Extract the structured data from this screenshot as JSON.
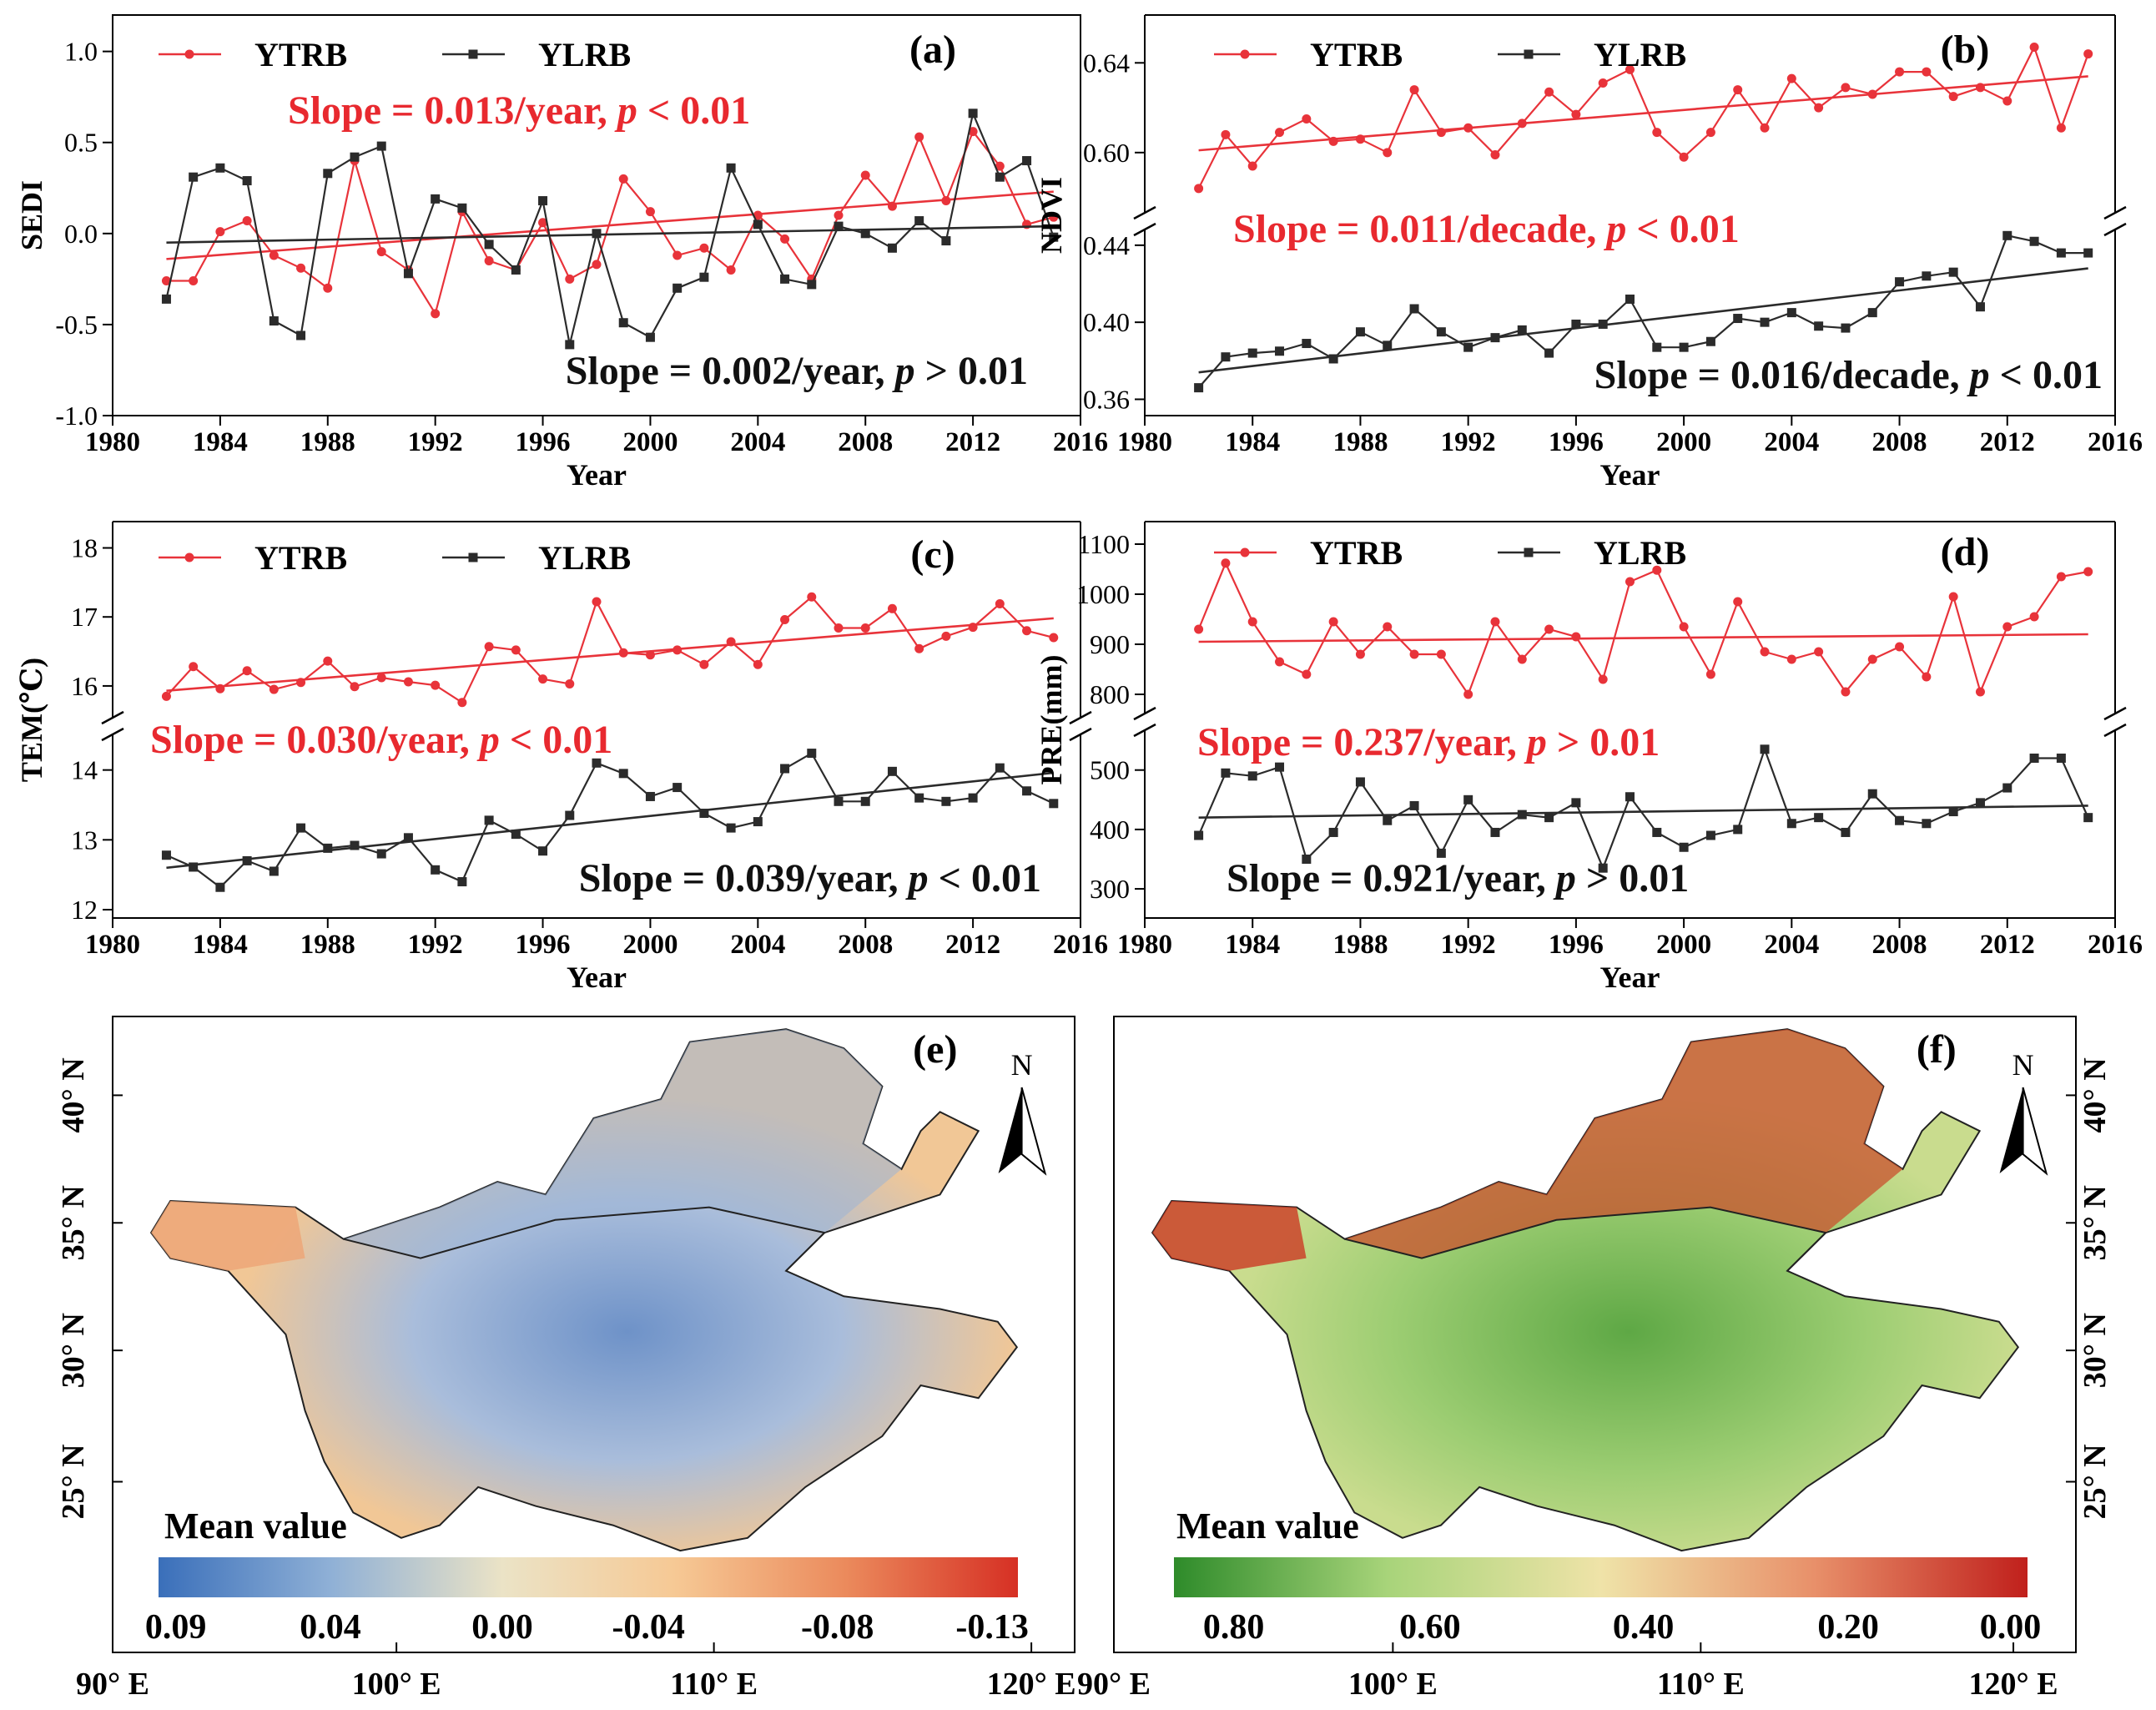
{
  "chart_data": [
    {
      "panel": "(a)",
      "type": "line",
      "xlabel": "Year",
      "ylabel": "SEDI",
      "xlim": [
        1980,
        2016
      ],
      "xticks": [
        1980,
        1984,
        1988,
        1992,
        1996,
        2000,
        2004,
        2008,
        2012,
        2016
      ],
      "ylim": [
        -1.0,
        1.2
      ],
      "yticks": [
        -1.0,
        -0.5,
        0.0,
        0.5,
        1.0
      ],
      "ytick_labels": [
        "-1.0",
        "-0.5",
        "0.0",
        "0.5",
        "1.0"
      ],
      "x": [
        1982,
        1983,
        1984,
        1985,
        1986,
        1987,
        1988,
        1989,
        1990,
        1991,
        1992,
        1993,
        1994,
        1995,
        1996,
        1997,
        1998,
        1999,
        2000,
        2001,
        2002,
        2003,
        2004,
        2005,
        2006,
        2007,
        2008,
        2009,
        2010,
        2011,
        2012,
        2013,
        2014,
        2015
      ],
      "series": [
        {
          "name": "YTRB",
          "color": "#e8333a",
          "marker": "circle",
          "values": [
            -0.26,
            -0.26,
            0.01,
            0.07,
            -0.12,
            -0.19,
            -0.3,
            0.4,
            -0.1,
            -0.2,
            -0.44,
            0.12,
            -0.15,
            -0.2,
            0.06,
            -0.25,
            -0.17,
            0.3,
            0.12,
            -0.12,
            -0.08,
            -0.2,
            0.1,
            -0.03,
            -0.25,
            0.1,
            0.32,
            0.15,
            0.53,
            0.18,
            0.56,
            0.37,
            0.05,
            0.09
          ],
          "trend": [
            -0.14,
            0.23
          ],
          "slope_label": "Slope = 0.013/year, ",
          "p_label": "p",
          "cmp_label": " < 0.01"
        },
        {
          "name": "YLRB",
          "color": "#2b2b2b",
          "marker": "square",
          "values": [
            -0.36,
            0.31,
            0.36,
            0.29,
            -0.48,
            -0.56,
            0.33,
            0.42,
            0.48,
            -0.22,
            0.19,
            0.14,
            -0.06,
            -0.2,
            0.18,
            -0.61,
            0.0,
            -0.49,
            -0.57,
            -0.3,
            -0.24,
            0.36,
            0.05,
            -0.25,
            -0.28,
            0.04,
            0.0,
            -0.08,
            0.07,
            -0.04,
            0.66,
            0.31,
            0.4,
            -0.02
          ],
          "trend": [
            -0.05,
            0.04
          ],
          "slope_label": "Slope = 0.002/year, ",
          "p_label": "p",
          "cmp_label": " > 0.01"
        }
      ]
    },
    {
      "panel": "(b)",
      "type": "line",
      "xlabel": "Year",
      "ylabel": "NDVI",
      "xlim": [
        1980,
        2016
      ],
      "xticks": [
        1980,
        1984,
        1988,
        1992,
        1996,
        2000,
        2004,
        2008,
        2012,
        2016
      ],
      "axis_break": true,
      "upper_ylim": [
        0.575,
        0.655
      ],
      "upper_yticks": [
        0.6,
        0.64
      ],
      "upper_ytick_labels": [
        "0.60",
        "0.64"
      ],
      "lower_ylim": [
        0.355,
        0.446
      ],
      "lower_yticks": [
        0.36,
        0.4,
        0.44
      ],
      "lower_ytick_labels": [
        "0.36",
        "0.40",
        "0.44"
      ],
      "x": [
        1982,
        1983,
        1984,
        1985,
        1986,
        1987,
        1988,
        1989,
        1990,
        1991,
        1992,
        1993,
        1994,
        1995,
        1996,
        1997,
        1998,
        1999,
        2000,
        2001,
        2002,
        2003,
        2004,
        2005,
        2006,
        2007,
        2008,
        2009,
        2010,
        2011,
        2012,
        2013,
        2014,
        2015
      ],
      "series": [
        {
          "name": "YTRB",
          "color": "#e8333a",
          "marker": "circle",
          "segment": "upper",
          "values": [
            0.584,
            0.608,
            0.594,
            0.609,
            0.615,
            0.605,
            0.606,
            0.6,
            0.628,
            0.609,
            0.611,
            0.599,
            0.613,
            0.627,
            0.617,
            0.631,
            0.637,
            0.609,
            0.598,
            0.609,
            0.628,
            0.611,
            0.633,
            0.62,
            0.629,
            0.626,
            0.636,
            0.636,
            0.625,
            0.629,
            0.623,
            0.647,
            0.611,
            0.644
          ],
          "trend": [
            0.601,
            0.634
          ],
          "slope_label": "Slope = 0.011/decade, ",
          "p_label": "p",
          "cmp_label": " < 0.01"
        },
        {
          "name": "YLRB",
          "color": "#2b2b2b",
          "marker": "square",
          "segment": "lower",
          "values": [
            0.366,
            0.382,
            0.384,
            0.385,
            0.389,
            0.381,
            0.395,
            0.388,
            0.407,
            0.395,
            0.387,
            0.392,
            0.396,
            0.384,
            0.399,
            0.399,
            0.412,
            0.387,
            0.387,
            0.39,
            0.402,
            0.4,
            0.405,
            0.398,
            0.397,
            0.405,
            0.421,
            0.424,
            0.426,
            0.408,
            0.445,
            0.442,
            0.436,
            0.436
          ],
          "trend": [
            0.374,
            0.428
          ],
          "slope_label": "Slope = 0.016/decade, ",
          "p_label": "p",
          "cmp_label": " < 0.01"
        }
      ]
    },
    {
      "panel": "(c)",
      "type": "line",
      "xlabel": "Year",
      "ylabel": "TEM(℃)",
      "xlim": [
        1980,
        2016
      ],
      "xticks": [
        1980,
        1984,
        1988,
        1992,
        1996,
        2000,
        2004,
        2008,
        2012,
        2016
      ],
      "axis_break": true,
      "upper_ylim": [
        15.6,
        18.2
      ],
      "upper_yticks": [
        16,
        17,
        18
      ],
      "upper_ytick_labels": [
        "16",
        "17",
        "18"
      ],
      "lower_ylim": [
        12.0,
        14.45
      ],
      "lower_yticks": [
        12,
        13,
        14
      ],
      "lower_ytick_labels": [
        "12",
        "13",
        "14"
      ],
      "x": [
        1982,
        1983,
        1984,
        1985,
        1986,
        1987,
        1988,
        1989,
        1990,
        1991,
        1992,
        1993,
        1994,
        1995,
        1996,
        1997,
        1998,
        1999,
        2000,
        2001,
        2002,
        2003,
        2004,
        2005,
        2006,
        2007,
        2008,
        2009,
        2010,
        2011,
        2012,
        2013,
        2014,
        2015
      ],
      "series": [
        {
          "name": "YTRB",
          "color": "#e8333a",
          "marker": "circle",
          "segment": "upper",
          "values": [
            15.85,
            16.28,
            15.96,
            16.22,
            15.95,
            16.05,
            16.36,
            15.99,
            16.12,
            16.06,
            16.01,
            15.76,
            16.57,
            16.52,
            16.1,
            16.03,
            17.22,
            16.48,
            16.45,
            16.52,
            16.31,
            16.64,
            16.31,
            16.96,
            17.29,
            16.84,
            16.84,
            17.12,
            16.54,
            16.72,
            16.85,
            17.19,
            16.8,
            16.7
          ],
          "trend": [
            15.93,
            16.98
          ],
          "slope_label": "Slope = 0.030/year, ",
          "p_label": "p",
          "cmp_label": " < 0.01"
        },
        {
          "name": "YLRB",
          "color": "#2b2b2b",
          "marker": "square",
          "segment": "lower",
          "values": [
            12.78,
            12.61,
            12.32,
            12.7,
            12.55,
            13.17,
            12.88,
            12.92,
            12.8,
            13.03,
            12.57,
            12.4,
            13.28,
            13.08,
            12.84,
            13.35,
            14.1,
            13.95,
            13.62,
            13.75,
            13.38,
            13.17,
            13.26,
            14.02,
            14.24,
            13.55,
            13.55,
            13.98,
            13.6,
            13.55,
            13.6,
            14.03,
            13.7,
            13.52
          ],
          "trend": [
            12.6,
            13.96
          ],
          "slope_label": "Slope = 0.039/year, ",
          "p_label": "p",
          "cmp_label": " < 0.01"
        }
      ]
    },
    {
      "panel": "(d)",
      "type": "line",
      "xlabel": "Year",
      "ylabel": "PRE(mm)",
      "xlim": [
        1980,
        2016
      ],
      "xticks": [
        1980,
        1984,
        1988,
        1992,
        1996,
        2000,
        2004,
        2008,
        2012,
        2016
      ],
      "axis_break": true,
      "upper_ylim": [
        770,
        1120
      ],
      "upper_yticks": [
        800,
        900,
        1000,
        1100
      ],
      "upper_ytick_labels": [
        "800",
        "900",
        "1000",
        "1100"
      ],
      "lower_ylim": [
        265,
        560
      ],
      "lower_yticks": [
        300,
        400,
        500
      ],
      "lower_ytick_labels": [
        "300",
        "400",
        "500"
      ],
      "x": [
        1982,
        1983,
        1984,
        1985,
        1986,
        1987,
        1988,
        1989,
        1990,
        1991,
        1992,
        1993,
        1994,
        1995,
        1996,
        1997,
        1998,
        1999,
        2000,
        2001,
        2002,
        2003,
        2004,
        2005,
        2006,
        2007,
        2008,
        2009,
        2010,
        2011,
        2012,
        2013,
        2014,
        2015
      ],
      "series": [
        {
          "name": "YTRB",
          "color": "#e8333a",
          "marker": "circle",
          "segment": "upper",
          "values": [
            930,
            1062,
            945,
            865,
            840,
            945,
            880,
            935,
            880,
            880,
            800,
            945,
            870,
            930,
            915,
            830,
            1025,
            1048,
            935,
            840,
            985,
            885,
            870,
            885,
            805,
            870,
            895,
            835,
            995,
            805,
            935,
            955,
            1035,
            1045
          ],
          "trend": [
            905,
            920
          ],
          "slope_label": "Slope = 0.237/year, ",
          "p_label": "p",
          "cmp_label": " > 0.01"
        },
        {
          "name": "YLRB",
          "color": "#2b2b2b",
          "marker": "square",
          "segment": "lower",
          "values": [
            390,
            495,
            490,
            505,
            350,
            395,
            480,
            415,
            440,
            360,
            450,
            395,
            425,
            420,
            445,
            335,
            455,
            395,
            370,
            390,
            400,
            535,
            410,
            420,
            395,
            460,
            415,
            410,
            430,
            445,
            470,
            520,
            520,
            420
          ],
          "trend": [
            420,
            440
          ],
          "slope_label": "Slope = 0.921/year, ",
          "p_label": "p",
          "cmp_label": " > 0.01"
        }
      ]
    },
    {
      "panel": "(e)",
      "type": "heatmap",
      "legend_title": "Mean value",
      "colorbar_ticks": [
        "0.09",
        "0.04",
        "0.00",
        "-0.04",
        "-0.08",
        "-0.13"
      ],
      "colorbar_colors": [
        "#3a6fba",
        "#8fb0d6",
        "#ebe3c6",
        "#f6c995",
        "#eb8a5c",
        "#d63024"
      ],
      "lat_labels": [
        "40° N",
        "35° N",
        "30° N",
        "25° N"
      ],
      "lon_labels": [
        "90° E",
        "100° E",
        "110° E",
        "120° E"
      ],
      "north_label": "N"
    },
    {
      "panel": "(f)",
      "type": "heatmap",
      "legend_title": "Mean value",
      "colorbar_ticks": [
        "0.80",
        "0.60",
        "0.40",
        "0.20",
        "0.00"
      ],
      "colorbar_colors": [
        "#2e8b2a",
        "#a8d47a",
        "#efe3a8",
        "#e8906a",
        "#c0201c"
      ],
      "lat_labels": [
        "40° N",
        "35° N",
        "30° N",
        "25° N"
      ],
      "lon_labels": [
        "90° E",
        "100° E",
        "110° E",
        "120° E"
      ],
      "north_label": "N"
    }
  ]
}
